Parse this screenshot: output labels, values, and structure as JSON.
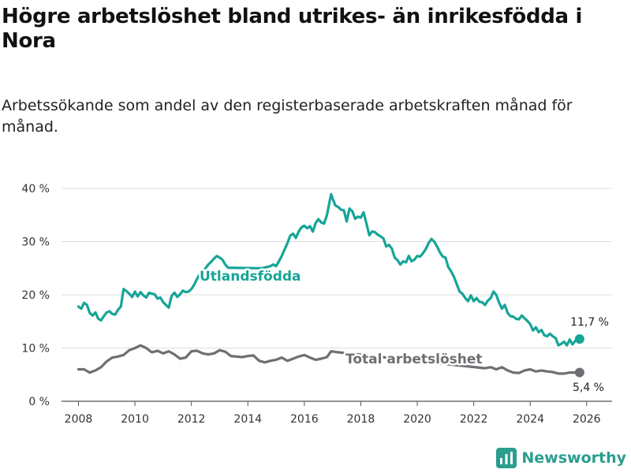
{
  "header": {
    "title": "Högre arbetslöshet bland utrikes- än inrikesfödda i Nora",
    "subtitle": "Arbetssökande som andel av den registerbaserade arbetskraften månad för månad."
  },
  "brand": {
    "name": "Newsworthy",
    "icon": "bar-chart-logo-icon"
  },
  "colors": {
    "foreign": "#16a597",
    "total": "#6e6e73",
    "grid": "#dddddd"
  },
  "chart_data": {
    "type": "line",
    "title": "Högre arbetslöshet bland utrikes- än inrikesfödda i Nora",
    "xlabel": "",
    "ylabel": "",
    "xlim": [
      2007.4,
      2026.9
    ],
    "ylim": [
      0,
      40
    ],
    "grid": true,
    "x_ticks": [
      2008,
      2010,
      2012,
      2014,
      2016,
      2018,
      2020,
      2022,
      2024,
      2026
    ],
    "x_tick_labels": [
      "2008",
      "2010",
      "2012",
      "2014",
      "2016",
      "2018",
      "2020",
      "2022",
      "2024",
      "2026"
    ],
    "y_ticks": [
      0,
      10,
      20,
      30,
      40
    ],
    "y_tick_labels": [
      "0 %",
      "10 %",
      "20 %",
      "30 %",
      "40 %"
    ],
    "series": [
      {
        "name": "Utlandsfödda",
        "color": "#16a597",
        "end_label": "11,7 %",
        "points": [
          [
            2008.0,
            17.8
          ],
          [
            2008.1,
            17.4
          ],
          [
            2008.2,
            18.5
          ],
          [
            2008.3,
            18.1
          ],
          [
            2008.4,
            16.6
          ],
          [
            2008.5,
            16.1
          ],
          [
            2008.6,
            16.7
          ],
          [
            2008.7,
            15.5
          ],
          [
            2008.8,
            15.2
          ],
          [
            2008.9,
            16.0
          ],
          [
            2009.0,
            16.7
          ],
          [
            2009.1,
            16.9
          ],
          [
            2009.2,
            16.4
          ],
          [
            2009.3,
            16.3
          ],
          [
            2009.4,
            17.2
          ],
          [
            2009.5,
            17.8
          ],
          [
            2009.6,
            21.1
          ],
          [
            2009.7,
            20.7
          ],
          [
            2009.8,
            20.2
          ],
          [
            2009.9,
            19.6
          ],
          [
            2010.0,
            20.6
          ],
          [
            2010.1,
            19.7
          ],
          [
            2010.2,
            20.5
          ],
          [
            2010.3,
            19.9
          ],
          [
            2010.4,
            19.5
          ],
          [
            2010.5,
            20.4
          ],
          [
            2010.6,
            20.2
          ],
          [
            2010.7,
            20.1
          ],
          [
            2010.8,
            19.3
          ],
          [
            2010.9,
            19.5
          ],
          [
            2011.0,
            18.6
          ],
          [
            2011.1,
            18.1
          ],
          [
            2011.2,
            17.6
          ],
          [
            2011.3,
            19.8
          ],
          [
            2011.4,
            20.4
          ],
          [
            2011.5,
            19.6
          ],
          [
            2011.6,
            20.1
          ],
          [
            2011.7,
            20.8
          ],
          [
            2011.8,
            20.5
          ],
          [
            2011.9,
            20.6
          ],
          [
            2012.0,
            21.1
          ],
          [
            2012.1,
            21.9
          ],
          [
            2012.2,
            23.0
          ],
          [
            2012.3,
            23.9
          ],
          [
            2012.4,
            24.4
          ],
          [
            2012.5,
            25.0
          ],
          [
            2012.6,
            25.7
          ],
          [
            2012.7,
            26.2
          ],
          [
            2012.8,
            26.8
          ],
          [
            2012.9,
            27.3
          ],
          [
            2013.0,
            27.0
          ],
          [
            2013.1,
            26.6
          ],
          [
            2013.2,
            25.7
          ],
          [
            2013.3,
            25.1
          ],
          [
            2014.5,
            25.0
          ],
          [
            2014.8,
            25.4
          ],
          [
            2014.9,
            25.7
          ],
          [
            2015.0,
            25.4
          ],
          [
            2015.1,
            26.3
          ],
          [
            2015.2,
            27.3
          ],
          [
            2015.3,
            28.5
          ],
          [
            2015.4,
            29.7
          ],
          [
            2015.5,
            31.1
          ],
          [
            2015.6,
            31.5
          ],
          [
            2015.7,
            30.7
          ],
          [
            2015.8,
            31.9
          ],
          [
            2015.9,
            32.7
          ],
          [
            2016.0,
            33.0
          ],
          [
            2016.1,
            32.5
          ],
          [
            2016.2,
            32.9
          ],
          [
            2016.3,
            31.9
          ],
          [
            2016.4,
            33.5
          ],
          [
            2016.5,
            34.2
          ],
          [
            2016.6,
            33.6
          ],
          [
            2016.7,
            33.4
          ],
          [
            2016.8,
            35.0
          ],
          [
            2016.9,
            37.7
          ],
          [
            2016.95,
            38.9
          ],
          [
            2017.0,
            38.1
          ],
          [
            2017.1,
            36.8
          ],
          [
            2017.2,
            36.5
          ],
          [
            2017.3,
            36.0
          ],
          [
            2017.4,
            35.9
          ],
          [
            2017.5,
            33.8
          ],
          [
            2017.6,
            36.2
          ],
          [
            2017.7,
            35.7
          ],
          [
            2017.8,
            34.3
          ],
          [
            2017.9,
            34.7
          ],
          [
            2018.0,
            34.5
          ],
          [
            2018.1,
            35.5
          ],
          [
            2018.2,
            33.4
          ],
          [
            2018.3,
            31.2
          ],
          [
            2018.4,
            31.9
          ],
          [
            2018.5,
            31.8
          ],
          [
            2018.6,
            31.3
          ],
          [
            2018.7,
            31.0
          ],
          [
            2018.8,
            30.6
          ],
          [
            2018.9,
            29.1
          ],
          [
            2019.0,
            29.4
          ],
          [
            2019.1,
            28.7
          ],
          [
            2019.2,
            27.0
          ],
          [
            2019.3,
            26.5
          ],
          [
            2019.4,
            25.7
          ],
          [
            2019.5,
            26.3
          ],
          [
            2019.6,
            26.1
          ],
          [
            2019.7,
            27.3
          ],
          [
            2019.8,
            26.3
          ],
          [
            2019.9,
            26.6
          ],
          [
            2020.0,
            27.3
          ],
          [
            2020.1,
            27.2
          ],
          [
            2020.2,
            27.8
          ],
          [
            2020.3,
            28.6
          ],
          [
            2020.4,
            29.7
          ],
          [
            2020.5,
            30.5
          ],
          [
            2020.6,
            30.0
          ],
          [
            2020.7,
            29.1
          ],
          [
            2020.8,
            28.0
          ],
          [
            2020.9,
            27.2
          ],
          [
            2021.0,
            27.0
          ],
          [
            2021.1,
            25.2
          ],
          [
            2021.2,
            24.4
          ],
          [
            2021.3,
            23.4
          ],
          [
            2021.4,
            22.0
          ],
          [
            2021.5,
            20.6
          ],
          [
            2021.6,
            20.2
          ],
          [
            2021.7,
            19.4
          ],
          [
            2021.8,
            18.8
          ],
          [
            2021.9,
            19.9
          ],
          [
            2022.0,
            18.8
          ],
          [
            2022.1,
            19.4
          ],
          [
            2022.2,
            18.7
          ],
          [
            2022.3,
            18.6
          ],
          [
            2022.4,
            18.1
          ],
          [
            2022.5,
            18.9
          ],
          [
            2022.6,
            19.4
          ],
          [
            2022.7,
            20.6
          ],
          [
            2022.8,
            20.0
          ],
          [
            2022.9,
            18.5
          ],
          [
            2023.0,
            17.4
          ],
          [
            2023.1,
            18.1
          ],
          [
            2023.2,
            16.6
          ],
          [
            2023.3,
            16.0
          ],
          [
            2023.4,
            15.9
          ],
          [
            2023.5,
            15.5
          ],
          [
            2023.6,
            15.4
          ],
          [
            2023.7,
            16.1
          ],
          [
            2023.8,
            15.6
          ],
          [
            2023.9,
            15.1
          ],
          [
            2024.0,
            14.5
          ],
          [
            2024.1,
            13.3
          ],
          [
            2024.2,
            13.9
          ],
          [
            2024.3,
            13.0
          ],
          [
            2024.4,
            13.4
          ],
          [
            2024.5,
            12.4
          ],
          [
            2024.6,
            12.2
          ],
          [
            2024.7,
            12.7
          ],
          [
            2024.8,
            12.2
          ],
          [
            2024.9,
            11.9
          ],
          [
            2025.0,
            10.5
          ],
          [
            2025.1,
            10.8
          ],
          [
            2025.2,
            11.2
          ],
          [
            2025.3,
            10.5
          ],
          [
            2025.4,
            11.6
          ],
          [
            2025.5,
            10.7
          ],
          [
            2025.6,
            11.4
          ],
          [
            2025.7,
            11.8
          ],
          [
            2025.75,
            11.7
          ]
        ]
      },
      {
        "name": "Total arbetslöshet",
        "color": "#6e6e73",
        "end_label": "5,4 %",
        "points": [
          [
            2008.0,
            6.0
          ],
          [
            2008.2,
            6.0
          ],
          [
            2008.4,
            5.4
          ],
          [
            2008.6,
            5.8
          ],
          [
            2008.8,
            6.4
          ],
          [
            2009.0,
            7.5
          ],
          [
            2009.2,
            8.2
          ],
          [
            2009.4,
            8.4
          ],
          [
            2009.6,
            8.7
          ],
          [
            2009.8,
            9.6
          ],
          [
            2010.0,
            10.0
          ],
          [
            2010.2,
            10.5
          ],
          [
            2010.4,
            10.0
          ],
          [
            2010.6,
            9.2
          ],
          [
            2010.8,
            9.5
          ],
          [
            2011.0,
            9.0
          ],
          [
            2011.2,
            9.4
          ],
          [
            2011.4,
            8.8
          ],
          [
            2011.6,
            8.0
          ],
          [
            2011.8,
            8.2
          ],
          [
            2012.0,
            9.4
          ],
          [
            2012.2,
            9.5
          ],
          [
            2012.4,
            9.0
          ],
          [
            2012.6,
            8.8
          ],
          [
            2012.8,
            9.0
          ],
          [
            2013.0,
            9.6
          ],
          [
            2013.2,
            9.3
          ],
          [
            2013.4,
            8.5
          ],
          [
            2013.6,
            8.4
          ],
          [
            2013.8,
            8.3
          ],
          [
            2014.0,
            8.5
          ],
          [
            2014.2,
            8.6
          ],
          [
            2014.4,
            7.6
          ],
          [
            2014.6,
            7.3
          ],
          [
            2014.8,
            7.6
          ],
          [
            2015.0,
            7.8
          ],
          [
            2015.2,
            8.2
          ],
          [
            2015.4,
            7.6
          ],
          [
            2015.6,
            8.0
          ],
          [
            2015.8,
            8.4
          ],
          [
            2016.0,
            8.7
          ],
          [
            2016.2,
            8.2
          ],
          [
            2016.4,
            7.8
          ],
          [
            2016.6,
            8.0
          ],
          [
            2016.8,
            8.3
          ],
          [
            2016.95,
            9.4
          ],
          [
            2017.2,
            9.2
          ],
          [
            2022.4,
            6.2
          ],
          [
            2022.6,
            6.4
          ],
          [
            2022.8,
            6.0
          ],
          [
            2023.0,
            6.4
          ],
          [
            2023.2,
            5.8
          ],
          [
            2023.4,
            5.4
          ],
          [
            2023.6,
            5.3
          ],
          [
            2023.8,
            5.8
          ],
          [
            2024.0,
            6.0
          ],
          [
            2024.2,
            5.6
          ],
          [
            2024.4,
            5.8
          ],
          [
            2024.6,
            5.6
          ],
          [
            2024.8,
            5.5
          ],
          [
            2025.0,
            5.2
          ],
          [
            2025.2,
            5.2
          ],
          [
            2025.4,
            5.4
          ],
          [
            2025.6,
            5.4
          ],
          [
            2025.75,
            5.4
          ]
        ]
      }
    ]
  }
}
